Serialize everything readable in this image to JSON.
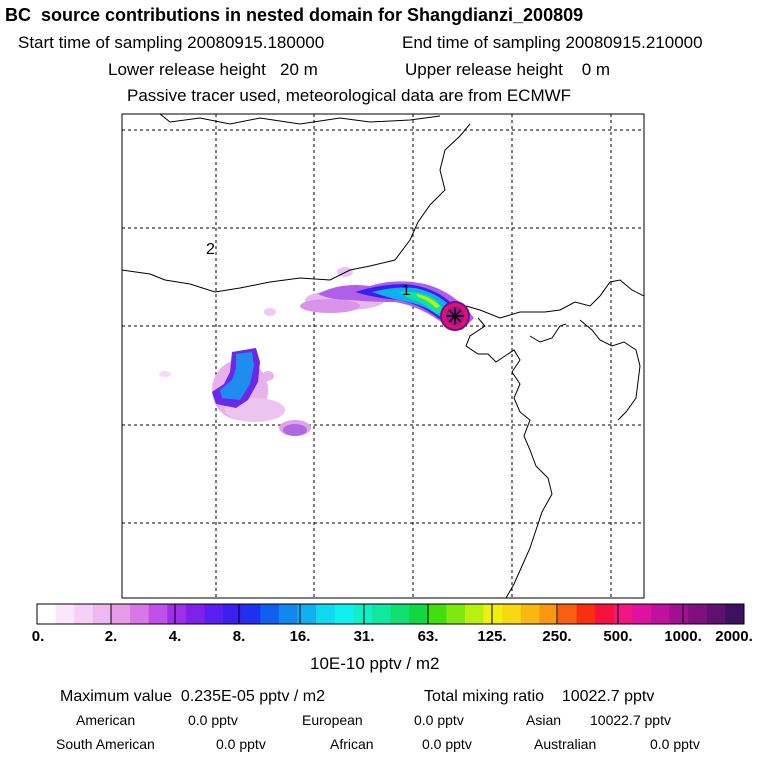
{
  "header": {
    "title": "BC  source contributions in nested domain for Shangdianzi_200809",
    "start_label": "Start time of sampling 20080915.180000",
    "end_label": "End time of sampling 20080915.210000",
    "lower_label": "Lower release height   20 m",
    "upper_label": "Upper release height    0 m",
    "tracer_label": "Passive tracer used, meteorological data are from ECMWF"
  },
  "map": {
    "label_1": "1",
    "label_2": "2",
    "receptor_marker": "star-marker"
  },
  "colorbar": {
    "colors": [
      "#ffffff",
      "#fbe6fb",
      "#f6d0f6",
      "#f0b8f0",
      "#e89ce8",
      "#d878e8",
      "#c050e8",
      "#a030e8",
      "#8020e8",
      "#5a1ef0",
      "#3c1ef0",
      "#2030f0",
      "#1060f0",
      "#1088f0",
      "#10b0f0",
      "#10d8f0",
      "#10f0f0",
      "#10f0c8",
      "#10e8a0",
      "#10e070",
      "#10d840",
      "#40e010",
      "#80e810",
      "#b8f010",
      "#f0f010",
      "#f8d810",
      "#f8b810",
      "#f89810",
      "#f86010",
      "#f83010",
      "#f81040",
      "#f01880",
      "#e010a0",
      "#c010a0",
      "#a01090",
      "#801080",
      "#601070",
      "#401060"
    ],
    "labels": [
      "0.",
      "2.",
      "4.",
      "8.",
      "16.",
      "31.",
      "63.",
      "125.",
      "250.",
      "500.",
      "1000.",
      "2000."
    ],
    "unit": "10E-10 pptv / m2"
  },
  "stats": {
    "max_value": "Maximum value  0.235E-05 pptv / m2",
    "total": "Total mixing ratio    10022.7 pptv",
    "american_label": "American",
    "american_value": "0.0 pptv",
    "european_label": "European",
    "european_value": "0.0 pptv",
    "asian_label": "Asian",
    "asian_value": "10022.7 pptv",
    "south_american_label": "South American",
    "south_american_value": "0.0 pptv",
    "african_label": "African",
    "african_value": "0.0 pptv",
    "australian_label": "Australian",
    "australian_value": "0.0 pptv"
  }
}
